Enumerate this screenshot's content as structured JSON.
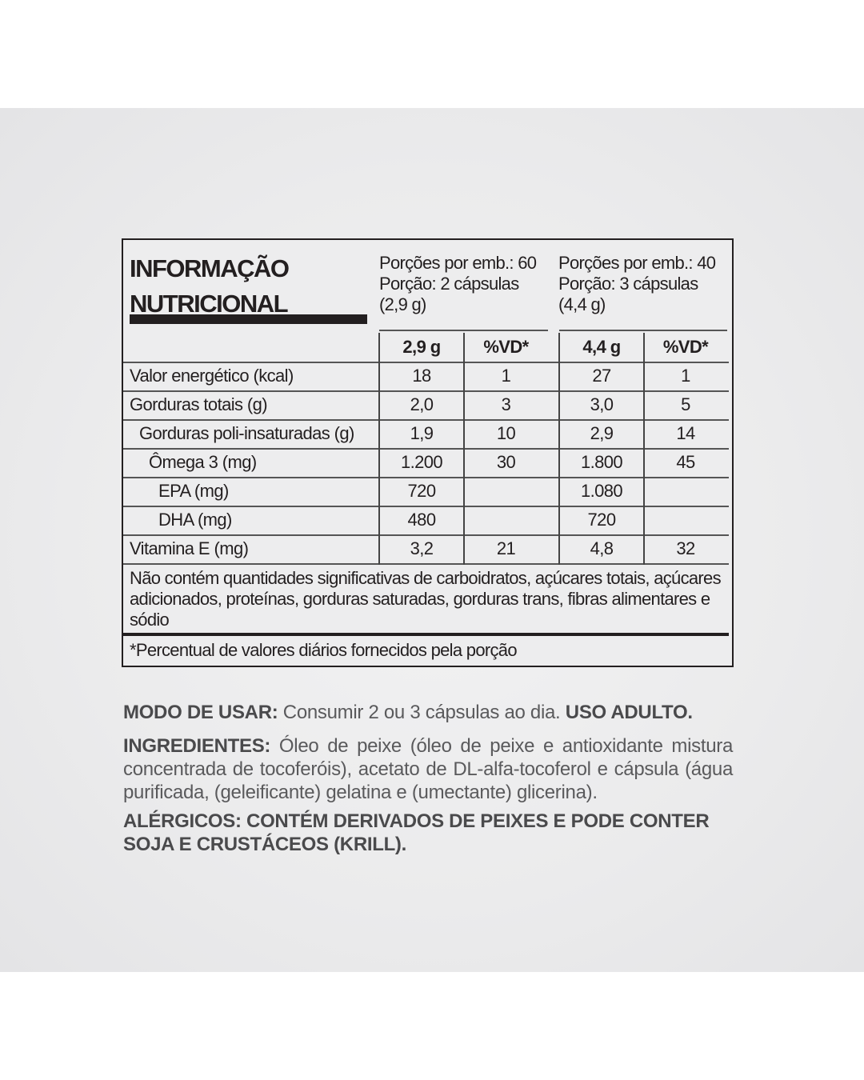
{
  "label": {
    "title_line1": "INFORMAÇÃO",
    "title_line2": "NUTRICIONAL",
    "serving_a": {
      "portions": "Porções por emb.: 60",
      "portion": "Porção: 2 cápsulas",
      "weight": "(2,9 g)"
    },
    "serving_b": {
      "portions": "Porções por emb.: 40",
      "portion": "Porção: 3 cápsulas",
      "weight": "(4,4 g)"
    },
    "columns": [
      "2,9 g",
      "%VD*",
      "4,4 g",
      "%VD*"
    ],
    "rows": [
      {
        "name": "Valor energético (kcal)",
        "values": [
          "18",
          "1",
          "27",
          "1"
        ]
      },
      {
        "name": "Gorduras totais (g)",
        "values": [
          "2,0",
          "3",
          "3,0",
          "5"
        ]
      },
      {
        "name": "Gorduras poli-insaturadas (g)",
        "values": [
          "1,9",
          "10",
          "2,9",
          "14"
        ]
      },
      {
        "name": "Ômega 3 (mg)",
        "values": [
          "1.200",
          "30",
          "1.800",
          "45"
        ]
      },
      {
        "name": "EPA (mg)",
        "values": [
          "720",
          "",
          "1.080",
          ""
        ]
      },
      {
        "name": "DHA (mg)",
        "values": [
          "480",
          "",
          "720",
          ""
        ]
      },
      {
        "name": "Vitamina E (mg)",
        "values": [
          "3,2",
          "21",
          "4,8",
          "32"
        ]
      }
    ],
    "note": "Não contém quantidades significativas de carboidratos, açúcares totais, açúcares adicionados, proteínas, gorduras saturadas, gorduras trans, fibras alimentares e sódio",
    "footnote": "*Percentual de valores diários fornecidos pela porção"
  },
  "usage": {
    "label": "MODO DE USAR:",
    "text": " Consumir 2 ou 3 cápsulas ao dia. ",
    "adult": "USO ADULTO."
  },
  "ingredients": {
    "label": "INGREDIENTES:",
    "text": " Óleo de peixe (óleo de peixe e antioxidante mistura concentrada de tocoferóis), acetato de DL-alfa-tocoferol e cápsula (água purificada, (geleificante) gelatina e (umectante) glicerina)."
  },
  "allergens": {
    "text": "ALÉRGICOS: CONTÉM DERIVADOS DE PEIXES E PODE CONTER SOJA E CRUSTÁCEOS (KRILL)."
  }
}
